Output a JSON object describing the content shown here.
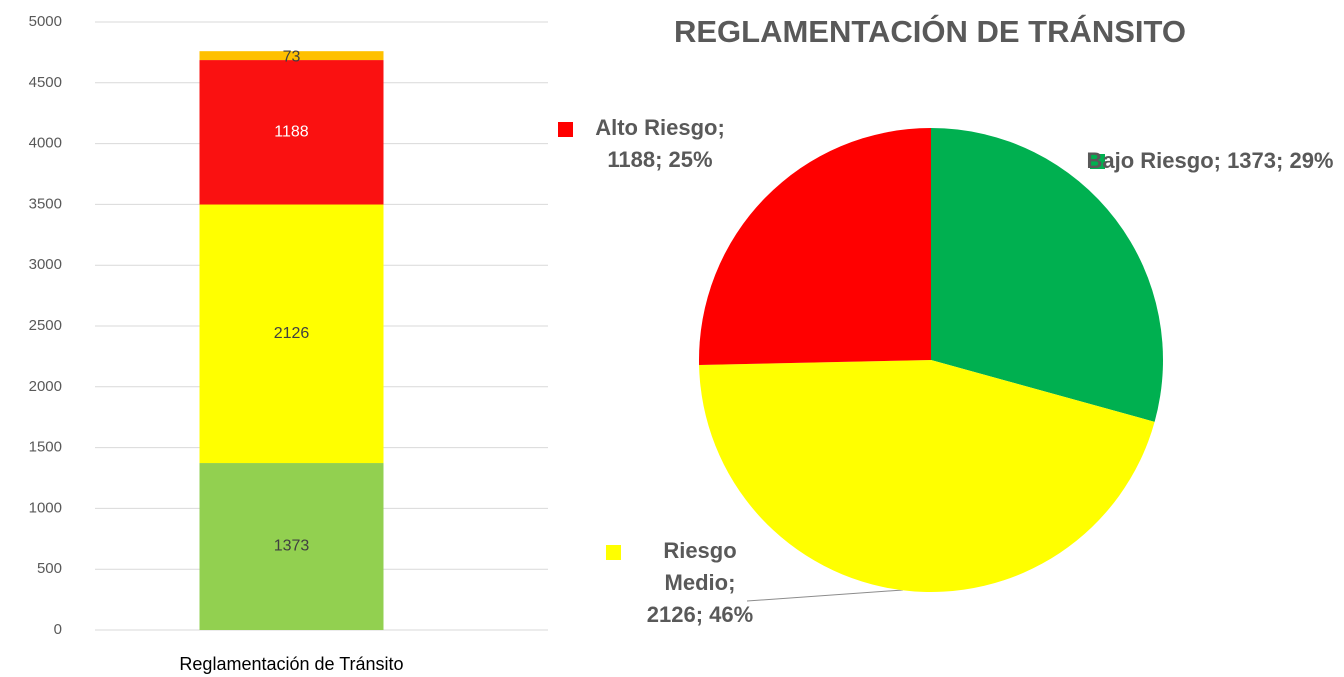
{
  "chart_data": [
    {
      "type": "bar",
      "stacked": true,
      "categories": [
        "Reglamentación de Tránsito"
      ],
      "series": [
        {
          "color": "#92d050",
          "values": [
            1373
          ]
        },
        {
          "color": "#ffff00",
          "values": [
            2126
          ]
        },
        {
          "color": "#fa1111",
          "values": [
            1188
          ]
        },
        {
          "color": "#ffc000",
          "values": [
            73
          ]
        }
      ],
      "ylim": [
        0,
        5000
      ],
      "yticks": [
        0,
        500,
        1000,
        1500,
        2000,
        2500,
        3000,
        3500,
        4000,
        4500,
        5000
      ],
      "grid": true
    },
    {
      "type": "pie",
      "title": "REGLAMENTACIÓN DE TRÁNSITO",
      "categories": [
        "Bajo Riesgo",
        "Riesgo Medio",
        "Alto Riesgo"
      ],
      "values": [
        1373,
        2126,
        1188
      ],
      "value_labels": [
        "Bajo Riesgo; 1373; 29%",
        "Riesgo Medio; 2126; 46%",
        "Alto Riesgo; 1188; 25%"
      ],
      "colors": [
        "#00b050",
        "#ffff00",
        "#ff0000"
      ]
    }
  ]
}
